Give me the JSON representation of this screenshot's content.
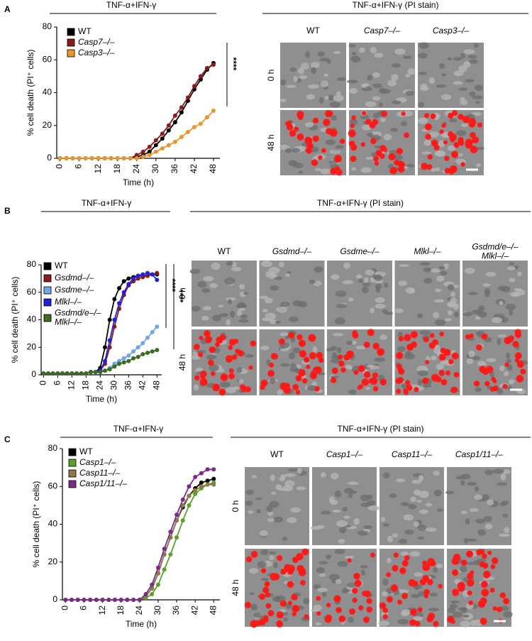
{
  "panel_letters": [
    "A",
    "B",
    "C"
  ],
  "chart_data": [
    {
      "type": "line",
      "title": "TNF-α+IFN-γ",
      "x_label": "Time (h)",
      "y_label": "% cell death (PI⁺ cells)",
      "x": [
        0,
        2,
        4,
        6,
        8,
        10,
        12,
        14,
        16,
        18,
        20,
        22,
        24,
        26,
        28,
        30,
        32,
        34,
        36,
        38,
        40,
        42,
        44,
        46,
        48
      ],
      "xlim": [
        -1,
        50
      ],
      "xticks": [
        0,
        6,
        12,
        18,
        24,
        30,
        36,
        42,
        48
      ],
      "ylim": [
        0,
        80
      ],
      "yticks": [
        0,
        20,
        40,
        60,
        80
      ],
      "legend": "top-left",
      "annotations": [
        "****"
      ],
      "series": [
        {
          "name": "WT",
          "color": "#000000",
          "values": [
            0,
            0,
            0,
            0,
            0,
            0,
            0,
            0,
            0,
            0,
            0,
            0,
            1,
            2,
            4,
            8,
            12,
            17,
            22,
            28,
            35,
            42,
            48,
            54,
            58
          ]
        },
        {
          "name": "Casp7–/–",
          "color": "#8b1a1a",
          "values": [
            0,
            0,
            0,
            0,
            0,
            0,
            0,
            0,
            0,
            0,
            0,
            0,
            2,
            4,
            7,
            11,
            15,
            20,
            26,
            31,
            37,
            44,
            50,
            55,
            57
          ]
        },
        {
          "name": "Casp3–/–",
          "color": "#e8962e",
          "values": [
            0,
            0,
            0,
            0,
            0,
            0,
            0,
            0,
            0,
            0,
            0,
            0,
            0,
            1,
            2,
            4,
            6,
            8,
            10,
            13,
            16,
            19,
            21,
            25,
            29
          ]
        }
      ]
    },
    {
      "type": "line",
      "title": "TNF-α+IFN-γ",
      "x_label": "Time (h)",
      "y_label": "% cell death (PI⁺ cells)",
      "x": [
        0,
        2,
        4,
        6,
        8,
        10,
        12,
        14,
        16,
        18,
        20,
        22,
        24,
        26,
        28,
        30,
        32,
        34,
        36,
        38,
        40,
        42,
        44,
        46,
        48
      ],
      "xlim": [
        -1,
        50
      ],
      "xticks": [
        0,
        6,
        12,
        18,
        24,
        30,
        36,
        42,
        48
      ],
      "ylim": [
        0,
        80
      ],
      "yticks": [
        0,
        20,
        40,
        60,
        80
      ],
      "legend": "top-left",
      "annotations": [
        "****",
        "****"
      ],
      "series": [
        {
          "name": "WT",
          "color": "#000000",
          "values": [
            1,
            1,
            1,
            1,
            1,
            1,
            1,
            1,
            1,
            1,
            2,
            2,
            5,
            20,
            40,
            55,
            63,
            68,
            70,
            71,
            72,
            72,
            72,
            73,
            73
          ]
        },
        {
          "name": "Gsdmd–/–",
          "color": "#8b1a1a",
          "values": [
            1,
            1,
            1,
            1,
            1,
            1,
            1,
            1,
            1,
            1,
            2,
            2,
            3,
            8,
            20,
            35,
            48,
            58,
            65,
            68,
            70,
            71,
            72,
            73,
            74
          ]
        },
        {
          "name": "Gsdme–/–",
          "color": "#6fa8e8",
          "values": [
            1,
            1,
            1,
            1,
            1,
            1,
            1,
            1,
            1,
            1,
            2,
            2,
            2,
            3,
            5,
            8,
            10,
            12,
            14,
            17,
            20,
            23,
            27,
            31,
            35
          ]
        },
        {
          "name": "Mlkl–/–",
          "color": "#2020e0",
          "values": [
            1,
            1,
            1,
            1,
            1,
            1,
            1,
            1,
            1,
            1,
            2,
            2,
            3,
            10,
            25,
            40,
            52,
            60,
            66,
            70,
            72,
            73,
            74,
            73,
            69
          ]
        },
        {
          "name": "Gsdmd/e–/–\nMlkl–/–",
          "color": "#3d6b1f",
          "values": [
            1,
            1,
            1,
            1,
            1,
            1,
            1,
            1,
            1,
            1,
            2,
            2,
            2,
            3,
            4,
            6,
            8,
            9,
            10,
            12,
            13,
            15,
            16,
            17,
            18
          ]
        }
      ]
    },
    {
      "type": "line",
      "title": "TNF-α+IFN-γ",
      "x_label": "Time (h)",
      "y_label": "% cell death (PI⁺ cells)",
      "x": [
        0,
        2,
        4,
        6,
        8,
        10,
        12,
        14,
        16,
        18,
        20,
        22,
        24,
        26,
        28,
        30,
        32,
        34,
        36,
        38,
        40,
        42,
        44,
        46,
        48
      ],
      "xlim": [
        -1,
        50
      ],
      "xticks": [
        0,
        6,
        12,
        18,
        24,
        30,
        36,
        42,
        48
      ],
      "ylim": [
        0,
        80
      ],
      "yticks": [
        0,
        20,
        40,
        60,
        80
      ],
      "legend": "top-left",
      "annotations": [],
      "series": [
        {
          "name": "WT",
          "color": "#000000",
          "values": [
            0,
            0,
            0,
            0,
            0,
            0,
            0,
            0,
            0,
            0,
            0,
            0,
            0,
            2,
            6,
            14,
            24,
            33,
            42,
            49,
            55,
            59,
            62,
            63,
            64
          ]
        },
        {
          "name": "Casp1–/–",
          "color": "#5aa02c",
          "values": [
            0,
            0,
            0,
            0,
            0,
            0,
            0,
            0,
            0,
            0,
            0,
            0,
            0,
            1,
            3,
            8,
            16,
            24,
            33,
            42,
            50,
            56,
            59,
            61,
            62
          ]
        },
        {
          "name": "Casp11–/–",
          "color": "#8c7a4a",
          "values": [
            0,
            0,
            0,
            0,
            0,
            0,
            0,
            0,
            0,
            0,
            0,
            0,
            0,
            2,
            6,
            14,
            24,
            33,
            42,
            50,
            55,
            58,
            60,
            61,
            61
          ]
        },
        {
          "name": "Casp1/11–/–",
          "color": "#7b2a8c",
          "values": [
            0,
            0,
            0,
            0,
            0,
            0,
            0,
            0,
            0,
            0,
            0,
            0,
            0,
            3,
            8,
            17,
            27,
            36,
            45,
            53,
            60,
            65,
            67,
            69,
            69
          ]
        }
      ]
    }
  ],
  "image_panels": [
    {
      "title": "TNF-α+IFN-γ (PI stain)",
      "columns": [
        "WT",
        "Casp7–/–",
        "Casp3–/–"
      ],
      "rows": [
        "0 h",
        "48 h"
      ]
    },
    {
      "title": "TNF-α+IFN-γ (PI stain)",
      "columns": [
        "WT",
        "Gsdmd–/–",
        "Gsdme–/–",
        "Mlkl–/–",
        "Gsdmd/e–/–\nMlkl–/–"
      ],
      "rows": [
        "0 h",
        "48 h"
      ]
    },
    {
      "title": "TNF-α+IFN-γ (PI stain)",
      "columns": [
        "WT",
        "Casp1–/–",
        "Casp11–/–",
        "Casp1/11–/–"
      ],
      "rows": [
        "0 h",
        "48 h"
      ]
    }
  ]
}
